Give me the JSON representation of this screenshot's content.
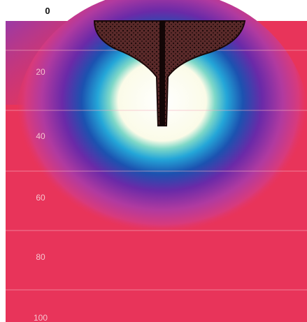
{
  "top_label": "0",
  "depth_labels": [
    "20",
    "40",
    "60",
    "80",
    "100"
  ]
}
